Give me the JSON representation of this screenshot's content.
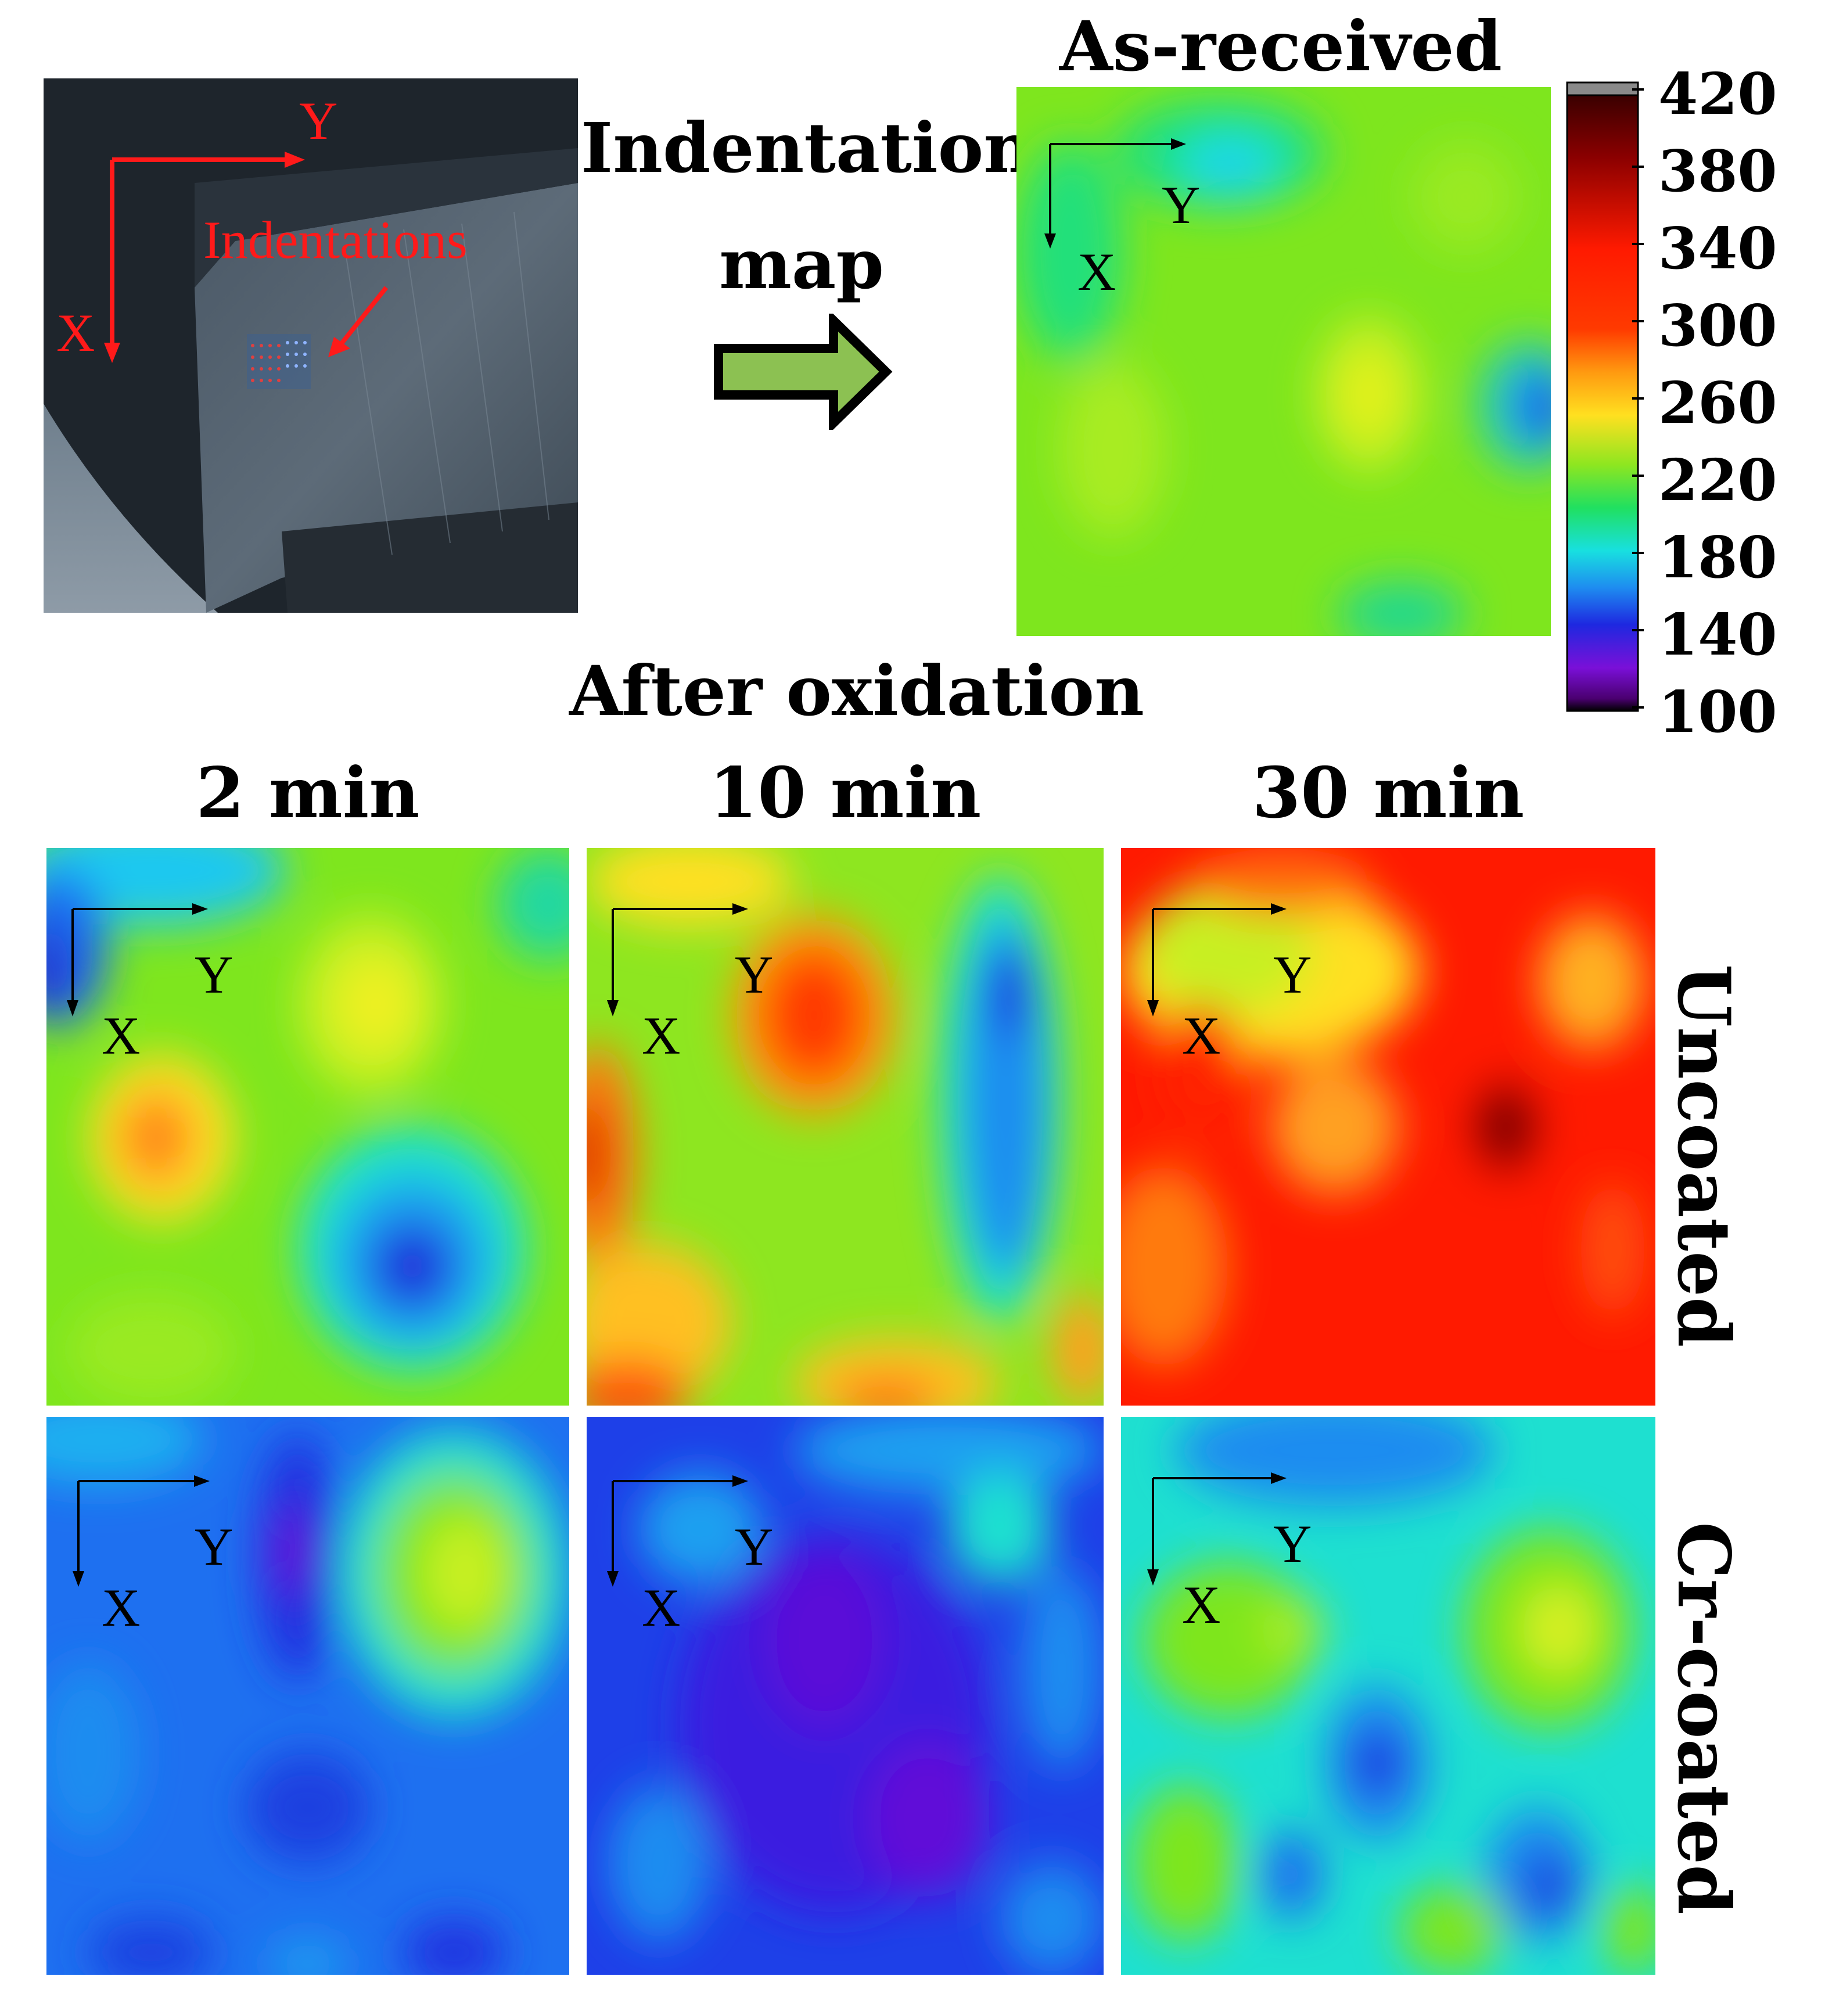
{
  "photo": {
    "axis_x": "X",
    "axis_y": "Y",
    "annotation": "Indentations",
    "annotation_color": "#ff1a1a"
  },
  "arrow": {
    "label_line1": "Indentation",
    "label_line2": "map",
    "fill_color": "#8cc152"
  },
  "as_received": {
    "title": "As-received",
    "axis_x": "X",
    "axis_y": "Y"
  },
  "colorbar": {
    "ticks": [
      "420",
      "380",
      "340",
      "300",
      "260",
      "220",
      "180",
      "140",
      "100"
    ],
    "min": 100,
    "max": 420,
    "palette": "rainbow-contour"
  },
  "after_oxidation": {
    "title": "After oxidation",
    "columns": [
      "2 min",
      "10 min",
      "30 min"
    ],
    "rows": [
      "Uncoated",
      "Cr-coated"
    ],
    "axis_x": "X",
    "axis_y": "Y"
  }
}
